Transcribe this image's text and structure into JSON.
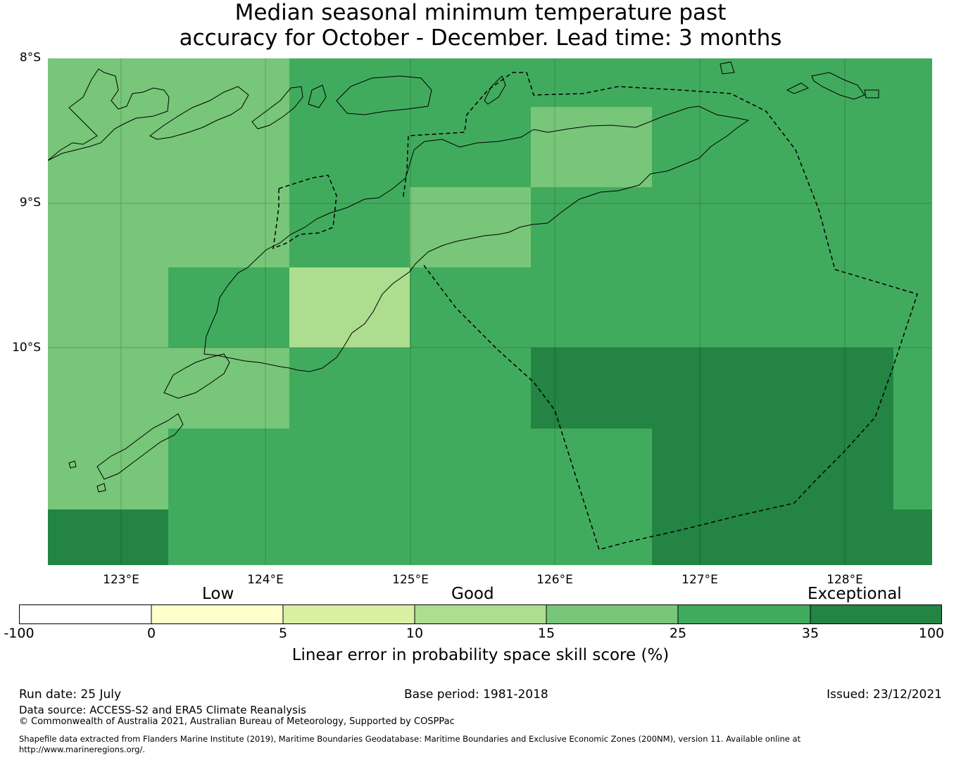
{
  "title": {
    "line1": "Median seasonal minimum temperature past",
    "line2": "accuracy for October - December. Lead time: 3 months"
  },
  "map": {
    "lat_labels": [
      "8°S",
      "9°S",
      "10°S"
    ],
    "lon_labels": [
      "123°E",
      "124°E",
      "125°E",
      "126°E",
      "127°E",
      "128°E"
    ],
    "ocean_color": "#41ab5d",
    "category_colors": {
      "0-5": "#ffffcc",
      "5-10": "#d9f0a3",
      "10-15": "#addd8e",
      "15-25": "#78c679",
      "25-35": "#41ab5d",
      "35-100": "#238443"
    }
  },
  "colorbar": {
    "category_labels": [
      "Low",
      "Good",
      "Exceptional"
    ],
    "ticks": [
      "-100",
      "0",
      "5",
      "10",
      "15",
      "25",
      "35",
      "100"
    ],
    "colors": [
      "#ffffff",
      "#ffffcc",
      "#d9f0a3",
      "#addd8e",
      "#78c679",
      "#41ab5d",
      "#238443"
    ],
    "title": "Linear error in probability space skill score (%)"
  },
  "footer": {
    "run_date": "Run date: 25 July",
    "base_period": "Base period: 1981-2018",
    "issued": "Issued: 23/12/2021",
    "data_source": "Data source: ACCESS-S2 and ERA5 Climate Reanalysis",
    "copyright": "© Commonwealth of Australia 2021, Australian Bureau of Meteorology, Supported by COSPPac",
    "shapefile_line1": "Shapefile data extracted from Flanders Marine Institute (2019), Maritime Boundaries Geodatabase: Maritime Boundaries and Exclusive Economic Zones (200NM), version 11. Available online at",
    "shapefile_line2": "http://www.marineregions.org/."
  }
}
